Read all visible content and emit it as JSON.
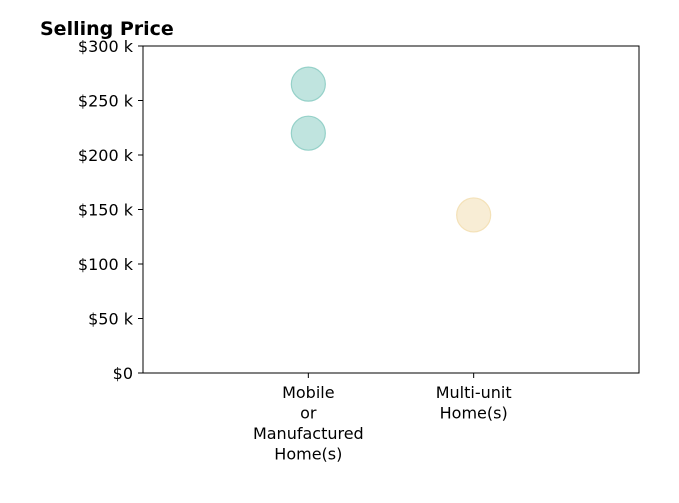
{
  "chart_data": {
    "type": "scatter",
    "title": "Selling Price",
    "xlabel": "",
    "ylabel": "",
    "categories": [
      [
        "Mobile",
        "or",
        "Manufactured",
        "Home(s)"
      ],
      [
        "Multi-unit",
        "Home(s)"
      ]
    ],
    "xlim": [
      -1,
      2
    ],
    "ylim": [
      0,
      300000
    ],
    "yticks": [
      {
        "value": 0,
        "label": "$0"
      },
      {
        "value": 50000,
        "label": "$50 k"
      },
      {
        "value": 100000,
        "label": "$100 k"
      },
      {
        "value": 150000,
        "label": "$150 k"
      },
      {
        "value": 200000,
        "label": "$200 k"
      },
      {
        "value": 250000,
        "label": "$250 k"
      },
      {
        "value": 300000,
        "label": "$300 k"
      }
    ],
    "grid": false,
    "points": [
      {
        "category": 0,
        "y": 265000,
        "color": "#8dcdc4"
      },
      {
        "category": 0,
        "y": 220000,
        "color": "#8dcdc4"
      },
      {
        "category": 1,
        "y": 145000,
        "color": "#f3dfb2"
      }
    ]
  }
}
